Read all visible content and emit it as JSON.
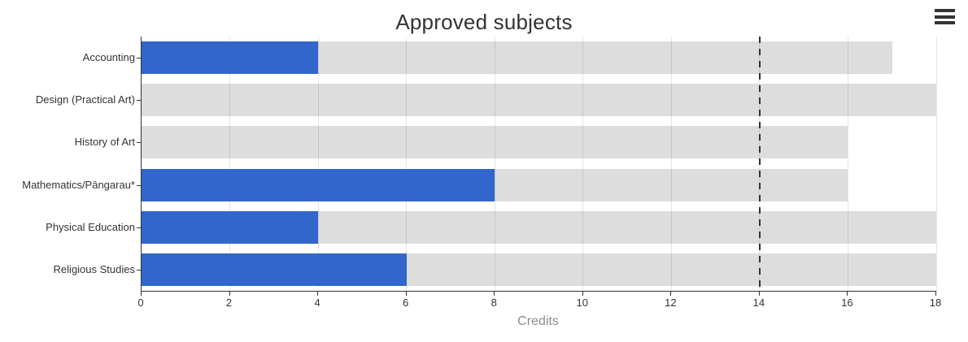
{
  "header": {
    "title": "Approved subjects"
  },
  "menu": {
    "icon": "hamburger-menu-icon"
  },
  "colors": {
    "bar_blue": "#3366cc",
    "bar_grey": "#dcdcdc",
    "gridline": "#e6e6e6",
    "axis_line": "#333333",
    "plot_line": "#333333",
    "title_text": "#333333",
    "tick_text": "#333333",
    "axis_title_text": "#8c8c8c"
  },
  "chart_data": {
    "type": "bar",
    "orientation": "horizontal",
    "title": "Approved subjects",
    "categories": [
      "Accounting",
      "Design (Practical Art)",
      "History of Art",
      "Mathematics/Pāngarau*",
      "Physical Education",
      "Religious Studies"
    ],
    "series": [
      {
        "name": "series-blue-credits",
        "color": "#3366cc",
        "values": [
          4,
          0,
          0,
          8,
          4,
          6
        ]
      },
      {
        "name": "series-grey-track",
        "color": "#dcdcdc",
        "values": [
          17,
          18,
          16,
          16,
          18,
          18
        ]
      }
    ],
    "xlabel": "Credits",
    "ylabel": "",
    "xlim": [
      0,
      18
    ],
    "tick_interval": 2,
    "tick_labels": [
      "0",
      "2",
      "4",
      "6",
      "8",
      "10",
      "12",
      "14",
      "16",
      "18"
    ],
    "plot_line_x": 14,
    "grid": true,
    "legend_position": "none"
  }
}
